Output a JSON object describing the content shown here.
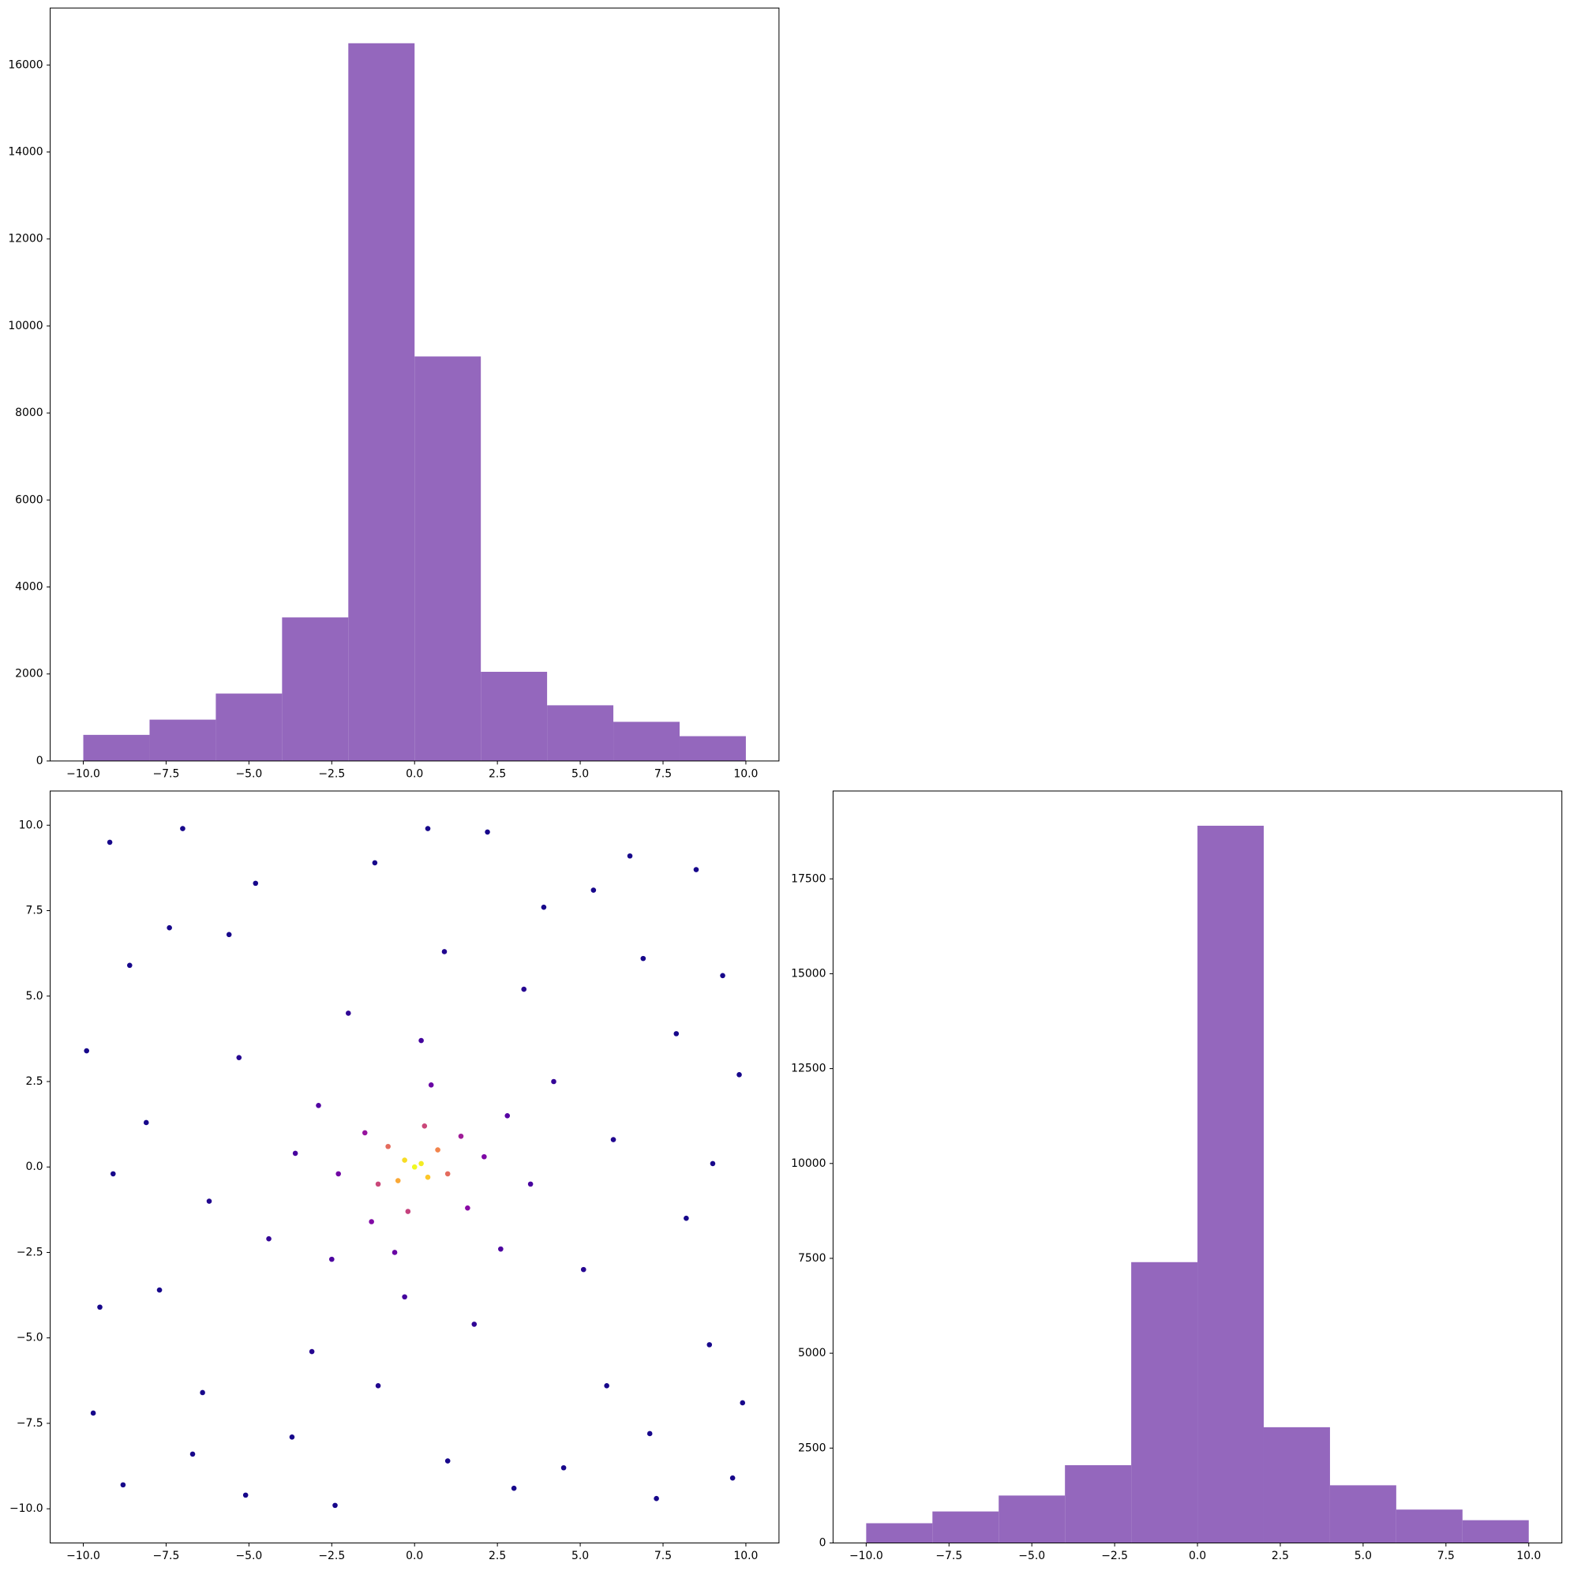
{
  "chart_data": [
    {
      "type": "histogram",
      "color": "#9467bd",
      "bins": [
        -10,
        -8,
        -6,
        -4,
        -2,
        0,
        2,
        4,
        6,
        8,
        10
      ],
      "counts": [
        600,
        950,
        1550,
        3300,
        16500,
        9300,
        2050,
        1280,
        900,
        570
      ],
      "xlim": [
        -11,
        11
      ],
      "ylim": [
        0,
        17310
      ],
      "xticks": [
        {
          "value": -10,
          "label": "−10.0"
        },
        {
          "value": -7.5,
          "label": "−7.5"
        },
        {
          "value": -5,
          "label": "−5.0"
        },
        {
          "value": -2.5,
          "label": "−2.5"
        },
        {
          "value": 0,
          "label": "0.0"
        },
        2.5,
        {
          "value": 5,
          "label": "5.0"
        },
        7.5,
        {
          "value": 10,
          "label": "10.0"
        }
      ],
      "yticks": [
        0,
        2000,
        4000,
        6000,
        8000,
        10000,
        12000,
        14000,
        16000
      ]
    },
    {
      "type": "scatter",
      "colormap": "plasma",
      "x": [
        0,
        0.2,
        -0.3,
        0.4,
        -0.5,
        0.7,
        -0.8,
        1.0,
        -1.1,
        0.3,
        -0.2,
        1.4,
        -1.5,
        1.6,
        -1.3,
        2.1,
        -2.3,
        0.5,
        -0.6,
        2.8,
        -2.9,
        2.6,
        -2.5,
        3.5,
        -3.6,
        0.2,
        -0.3,
        4.2,
        -4.4,
        1.8,
        -2.0,
        5.1,
        -5.3,
        3.3,
        -3.1,
        6.0,
        -6.2,
        0.9,
        -1.1,
        8.5,
        -9.2,
        9.6,
        -8.8,
        7.1,
        -7.4,
        9.8,
        -9.9,
        2.2,
        -2.4,
        6.5,
        -6.7,
        8.9,
        -8.6,
        4.5,
        -4.8,
        9.3,
        -9.5,
        5.8,
        -5.6,
        7.9,
        -7.7,
        3.9,
        -3.7,
        1.0,
        -1.2,
        8.2,
        -8.1,
        6.9,
        -6.4,
        9.9,
        -9.7,
        0.4,
        5.4,
        -5.1,
        9.0,
        -9.1,
        7.3,
        -7.0,
        3.0
      ],
      "y": [
        0,
        0.1,
        0.2,
        -0.3,
        -0.4,
        0.5,
        0.6,
        -0.2,
        -0.5,
        1.2,
        -1.3,
        0.9,
        1.0,
        -1.2,
        -1.6,
        0.3,
        -0.2,
        2.4,
        -2.5,
        1.5,
        1.8,
        -2.4,
        -2.7,
        -0.5,
        0.4,
        3.7,
        -3.8,
        2.5,
        -2.1,
        -4.6,
        4.5,
        -3.0,
        3.2,
        5.2,
        -5.4,
        0.8,
        -1.0,
        6.3,
        -6.4,
        8.7,
        9.5,
        -9.1,
        -9.3,
        -7.8,
        7.0,
        2.7,
        3.4,
        9.8,
        -9.9,
        9.1,
        -8.4,
        -5.2,
        5.9,
        -8.8,
        8.3,
        5.6,
        -4.1,
        -6.4,
        6.8,
        3.9,
        -3.6,
        7.6,
        -7.9,
        -8.6,
        8.9,
        -1.5,
        1.3,
        6.1,
        -6.6,
        -6.9,
        -7.2,
        9.9,
        8.1,
        -9.6,
        0.1,
        -0.2,
        -9.7,
        9.9,
        -9.4
      ],
      "c": [
        1,
        0.97,
        0.93,
        0.88,
        0.8,
        0.7,
        0.62,
        0.62,
        0.5,
        0.5,
        0.48,
        0.35,
        0.32,
        0.28,
        0.26,
        0.25,
        0.22,
        0.2,
        0.2,
        0.15,
        0.14,
        0.13,
        0.13,
        0.12,
        0.12,
        0.11,
        0.11,
        0.08,
        0.08,
        0.07,
        0.07,
        0.05,
        0.05,
        0.05,
        0.05,
        0.04,
        0.04,
        0.04,
        0.04,
        0.02,
        0.02,
        0.02,
        0.02,
        0.02,
        0.02,
        0.02,
        0.02,
        0.02,
        0.02,
        0.02,
        0.02,
        0.02,
        0.02,
        0.02,
        0.02,
        0.02,
        0.02,
        0.02,
        0.02,
        0.02,
        0.02,
        0.02,
        0.02,
        0.02,
        0.02,
        0.02,
        0.02,
        0.02,
        0.02,
        0.02,
        0.02,
        0.02,
        0.02,
        0.02,
        0.02,
        0.02,
        0.02,
        0.02,
        0.02
      ],
      "xlim": [
        -11,
        11
      ],
      "ylim": [
        -11,
        11
      ],
      "xticks": [
        {
          "value": -10,
          "label": "−10.0"
        },
        {
          "value": -7.5,
          "label": "−7.5"
        },
        {
          "value": -5,
          "label": "−5.0"
        },
        {
          "value": -2.5,
          "label": "−2.5"
        },
        {
          "value": 0,
          "label": "0.0"
        },
        2.5,
        {
          "value": 5,
          "label": "5.0"
        },
        7.5,
        {
          "value": 10,
          "label": "10.0"
        }
      ],
      "yticks": [
        {
          "value": -10,
          "label": "−10.0"
        },
        {
          "value": -7.5,
          "label": "−7.5"
        },
        {
          "value": -5,
          "label": "−5.0"
        },
        {
          "value": -2.5,
          "label": "−2.5"
        },
        {
          "value": 0,
          "label": "0.0"
        },
        2.5,
        {
          "value": 5,
          "label": "5.0"
        },
        7.5,
        {
          "value": 10,
          "label": "10.0"
        }
      ]
    },
    {
      "type": "histogram",
      "color": "#9467bd",
      "bins": [
        -10,
        -8,
        -6,
        -4,
        -2,
        0,
        2,
        4,
        6,
        8,
        10
      ],
      "counts": [
        520,
        830,
        1250,
        2050,
        7400,
        18900,
        3050,
        1520,
        880,
        600
      ],
      "xlim": [
        -11,
        11
      ],
      "ylim": [
        0,
        19815
      ],
      "xticks": [
        {
          "value": -10,
          "label": "−10.0"
        },
        {
          "value": -7.5,
          "label": "−7.5"
        },
        {
          "value": -5,
          "label": "−5.0"
        },
        {
          "value": -2.5,
          "label": "−2.5"
        },
        {
          "value": 0,
          "label": "0.0"
        },
        2.5,
        {
          "value": 5,
          "label": "5.0"
        },
        7.5,
        {
          "value": 10,
          "label": "10.0"
        }
      ],
      "yticks": [
        0,
        2500,
        5000,
        7500,
        10000,
        12500,
        15000,
        17500
      ]
    }
  ]
}
